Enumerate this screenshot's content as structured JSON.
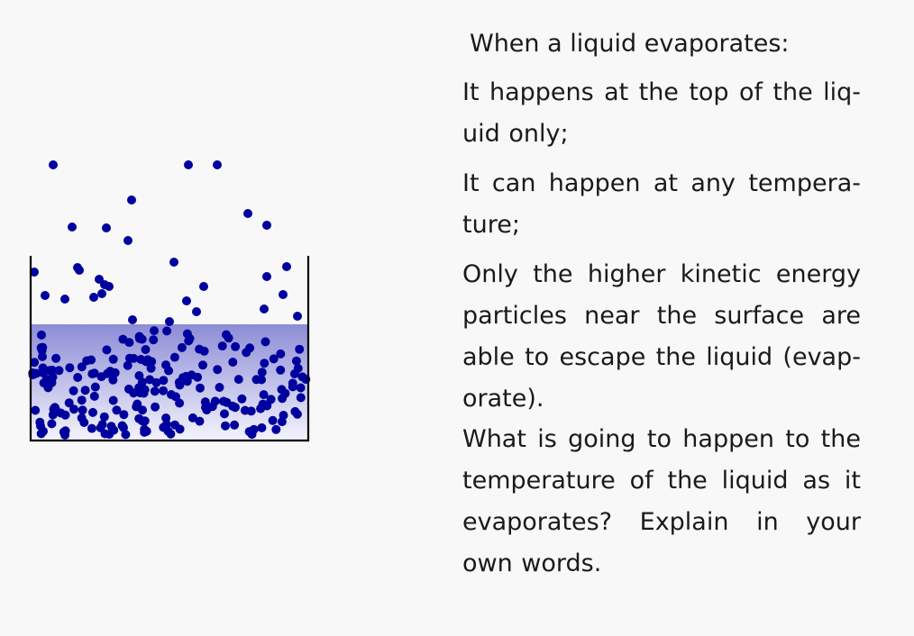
{
  "heading": "When a liquid evaporates:",
  "points": [
    "It happens at the top of the liq­uid only;",
    "It can happen at any tempera­ture;",
    "Only the higher kinetic energy particles near the surface are able to escape the liquid (evap­orate)."
  ],
  "question": "What is going to happen to the temperature of the liquid as it evaporates? Explain in your own words.",
  "colors": {
    "particle": "#00009e",
    "liquid_top": "#8c8cd6",
    "liquid_bottom": "#f4f4fd",
    "container": "#000000"
  }
}
